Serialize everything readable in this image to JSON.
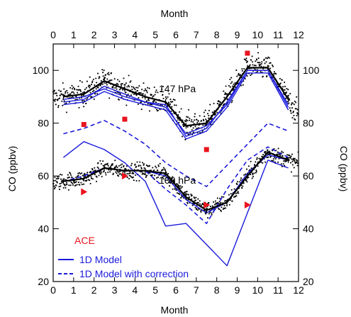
{
  "chart_data": {
    "type": "line",
    "x_axis": {
      "label": "Month",
      "range": [
        0,
        12
      ],
      "ticks": [
        0,
        1,
        2,
        3,
        4,
        5,
        6,
        7,
        8,
        9,
        10,
        11,
        12
      ]
    },
    "y_axis": {
      "label": "CO (ppbv)",
      "range": [
        20,
        110
      ],
      "ticks": [
        20,
        40,
        60,
        80,
        100
      ]
    },
    "colors": {
      "observed": "#000000",
      "model": "#1a1adb",
      "ace": "#e8141e"
    },
    "annotations": [
      {
        "text": "147 hPa",
        "x": 6.4,
        "y": 93
      },
      {
        "text": "100 hPa",
        "x": 6.4,
        "y": 61
      },
      {
        "text": "ACE",
        "x": 1.4,
        "y": 35.5
      }
    ],
    "legend": {
      "position": "bottom-left",
      "entries": [
        {
          "label": "1D Model",
          "style": "solid"
        },
        {
          "label": "1D Model with correction",
          "style": "dashed"
        }
      ]
    },
    "series": [
      {
        "level": "147 hPa",
        "kind": "observed-monthly-mean",
        "x": [
          0.5,
          1.5,
          2.5,
          3.5,
          4.5,
          5.5,
          6.5,
          7.5,
          8.5,
          9.5,
          10.5,
          11.5
        ],
        "y": [
          90,
          91,
          96,
          93,
          90,
          88,
          79,
          80,
          90,
          101,
          101,
          89
        ]
      },
      {
        "level": "147 hPa",
        "kind": "model",
        "x": [
          0.5,
          1.5,
          2.5,
          3.5,
          4.5,
          5.5,
          6.5,
          7.5,
          8.5,
          9.5,
          10.5,
          11.5
        ],
        "y": [
          88,
          89,
          94,
          91,
          88,
          86,
          76,
          79,
          87,
          100,
          100,
          86
        ]
      },
      {
        "level": "147 hPa",
        "kind": "model",
        "x": [
          0.5,
          1.5,
          2.5,
          3.5,
          4.5,
          5.5,
          6.5,
          7.5,
          8.5,
          9.5,
          10.5,
          11.5
        ],
        "y": [
          87,
          88,
          92,
          89,
          87,
          85,
          74,
          77,
          86,
          99,
          99,
          85
        ]
      },
      {
        "level": "147 hPa",
        "kind": "model",
        "x": [
          0.5,
          1.5,
          2.5,
          3.5,
          4.5,
          5.5,
          6.5,
          7.5,
          8.5,
          9.5,
          10.5,
          11.5
        ],
        "y": [
          89,
          90,
          93,
          90,
          88,
          87,
          75,
          78,
          88,
          100,
          100,
          87
        ]
      },
      {
        "level": "147 hPa",
        "kind": "model-corrected-dashed",
        "x": [
          0.5,
          1.5,
          2.5,
          3.5,
          4.5,
          5.5,
          6.5,
          7.5,
          8.5,
          9.5,
          10.5,
          11.5
        ],
        "y": [
          76,
          78,
          81,
          77,
          72,
          65,
          60,
          56,
          64,
          72,
          80,
          77
        ]
      },
      {
        "level": "100 hPa",
        "kind": "model",
        "x": [
          0.5,
          1.5,
          2.5,
          3.5,
          4.5,
          5.5,
          6.5,
          7.5,
          8.5,
          9.5,
          10.5,
          11.5
        ],
        "y": [
          67,
          73,
          70,
          65,
          58,
          41,
          42,
          34,
          26,
          46,
          66,
          63
        ]
      },
      {
        "level": "100 hPa",
        "kind": "model-corrected-dashed",
        "x": [
          0.5,
          1.5,
          2.5,
          3.5,
          4.5,
          5.5,
          6.5,
          7.5,
          8.5,
          9.5,
          10.5,
          11.5
        ],
        "y": [
          58,
          60,
          63,
          62,
          62,
          55,
          49,
          42,
          55,
          66,
          71,
          67
        ]
      },
      {
        "level": "100 hPa",
        "kind": "model",
        "x": [
          0.5,
          1.5,
          2.5,
          3.5,
          4.5,
          5.5,
          6.5,
          7.5,
          8.5,
          9.5,
          10.5,
          11.5
        ],
        "y": [
          58,
          59,
          63,
          62,
          62,
          60,
          51,
          46,
          50,
          61,
          68,
          66
        ]
      },
      {
        "level": "100 hPa",
        "kind": "observed-monthly-mean",
        "x": [
          0.5,
          1.5,
          2.5,
          3.5,
          4.5,
          5.5,
          6.5,
          7.5,
          8.5,
          9.5,
          10.5,
          11.5
        ],
        "y": [
          58,
          59,
          63,
          62,
          62,
          61,
          52,
          47,
          50,
          60,
          69,
          66
        ]
      }
    ],
    "ace_squares_147hPa": {
      "x": [
        1.5,
        3.5,
        7.5,
        9.5
      ],
      "y": [
        79.5,
        81.5,
        70,
        106.5
      ]
    },
    "ace_triangles_100hPa": {
      "x": [
        1.5,
        3.5,
        7.5,
        9.5
      ],
      "y": [
        54,
        60,
        49,
        49
      ]
    },
    "scatter_bands": [
      {
        "level": "147 hPa",
        "description": "daily observations",
        "follows": "147 hPa observed-monthly-mean",
        "spread": 6
      },
      {
        "level": "100 hPa",
        "description": "daily observations",
        "follows": "100 hPa observed-monthly-mean",
        "spread": 4
      }
    ]
  }
}
